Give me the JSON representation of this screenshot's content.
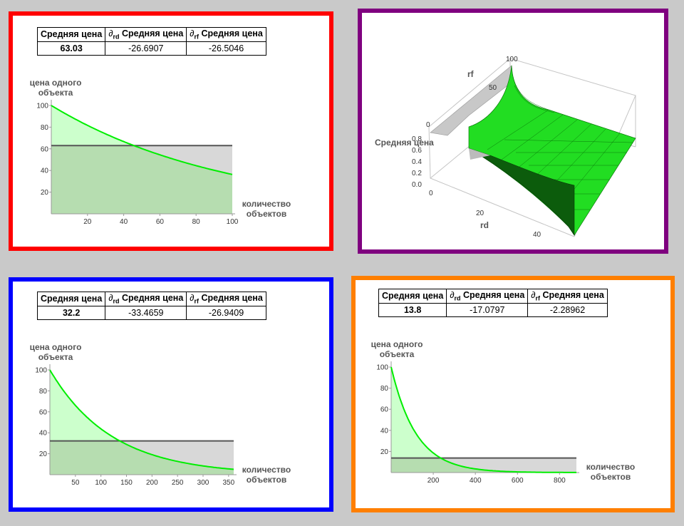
{
  "panels": [
    {
      "table": {
        "headers": [
          "Средняя цена",
          "Средняя цена",
          "Средняя цена"
        ],
        "partial_symbols": [
          "",
          "∂",
          "∂"
        ],
        "partial_subscripts": [
          "",
          "rd",
          "rf"
        ],
        "values": [
          "63.03",
          "-26.6907",
          "-26.5046"
        ]
      },
      "colors": {
        "border": "#ff0000"
      }
    },
    {
      "colors": {
        "border": "#7f007f"
      }
    },
    {
      "table": {
        "headers": [
          "Средняя цена",
          "Средняя цена",
          "Средняя цена"
        ],
        "partial_symbols": [
          "",
          "∂",
          "∂"
        ],
        "partial_subscripts": [
          "",
          "rd",
          "rf"
        ],
        "values": [
          "32.2",
          "-33.4659",
          "-26.9409"
        ]
      },
      "colors": {
        "border": "#0000ff"
      }
    },
    {
      "table": {
        "headers": [
          "Средняя цена",
          "Средняя цена",
          "Средняя цена"
        ],
        "partial_symbols": [
          "",
          "∂",
          "∂"
        ],
        "partial_subscripts": [
          "",
          "rd",
          "rf"
        ],
        "values": [
          "13.8",
          "-17.0797",
          "-2.28962"
        ]
      },
      "colors": {
        "border": "#ff7f00"
      }
    }
  ],
  "chart_data": [
    {
      "type": "area",
      "ylabel": "цена одного объекта",
      "xlabel": "количество объектов",
      "xlim": [
        0,
        100
      ],
      "ylim": [
        0,
        100
      ],
      "xticks": [
        20,
        40,
        60,
        80,
        100
      ],
      "yticks": [
        20,
        40,
        60,
        80,
        100
      ],
      "curve": {
        "start": 100,
        "decay_rate": 0.01013
      },
      "average": 63.03,
      "grid": false,
      "colors": {
        "curve": "#00ee00",
        "curve_fill": "#ccffcc",
        "average_line": "#555555",
        "average_fill": "#d8d8d8",
        "overlap_fill": "#b6ddb0"
      }
    },
    {
      "type": "surface",
      "zlabel": "Средняя цена",
      "xlabel": "rd",
      "ylabel": "rf",
      "xticks": [
        0,
        20,
        40
      ],
      "yticks": [
        0,
        50,
        100
      ],
      "zticks": [
        0.0,
        0.2,
        0.4,
        0.6,
        0.8
      ],
      "colors": {
        "surface": "#22dd22",
        "surface_dark": "#0a5a0a",
        "surface_grey": "#c0c0c0"
      }
    },
    {
      "type": "area",
      "ylabel": "цена одного объекта",
      "xlabel": "количество объектов",
      "xlim": [
        0,
        360
      ],
      "ylim": [
        0,
        100
      ],
      "xticks": [
        50,
        100,
        150,
        200,
        250,
        300,
        350
      ],
      "yticks": [
        20,
        40,
        60,
        80,
        100
      ],
      "curve": {
        "start": 100,
        "decay_rate": 0.00827
      },
      "average": 32.2,
      "grid": false,
      "colors": {
        "curve": "#00ee00",
        "curve_fill": "#ccffcc",
        "average_line": "#555555",
        "average_fill": "#d8d8d8",
        "overlap_fill": "#b6ddb0"
      }
    },
    {
      "type": "area",
      "ylabel": "цена одного объекта",
      "xlabel": "количество объектов",
      "xlim": [
        0,
        880
      ],
      "ylim": [
        0,
        100
      ],
      "xticks": [
        200,
        400,
        600,
        800
      ],
      "yticks": [
        20,
        40,
        60,
        80,
        100
      ],
      "curve": {
        "start": 100,
        "decay_rate": 0.00842
      },
      "average": 13.8,
      "grid": false,
      "colors": {
        "curve": "#00ee00",
        "curve_fill": "#ccffcc",
        "average_line": "#555555",
        "average_fill": "#d8d8d8",
        "overlap_fill": "#b6ddb0"
      }
    }
  ]
}
